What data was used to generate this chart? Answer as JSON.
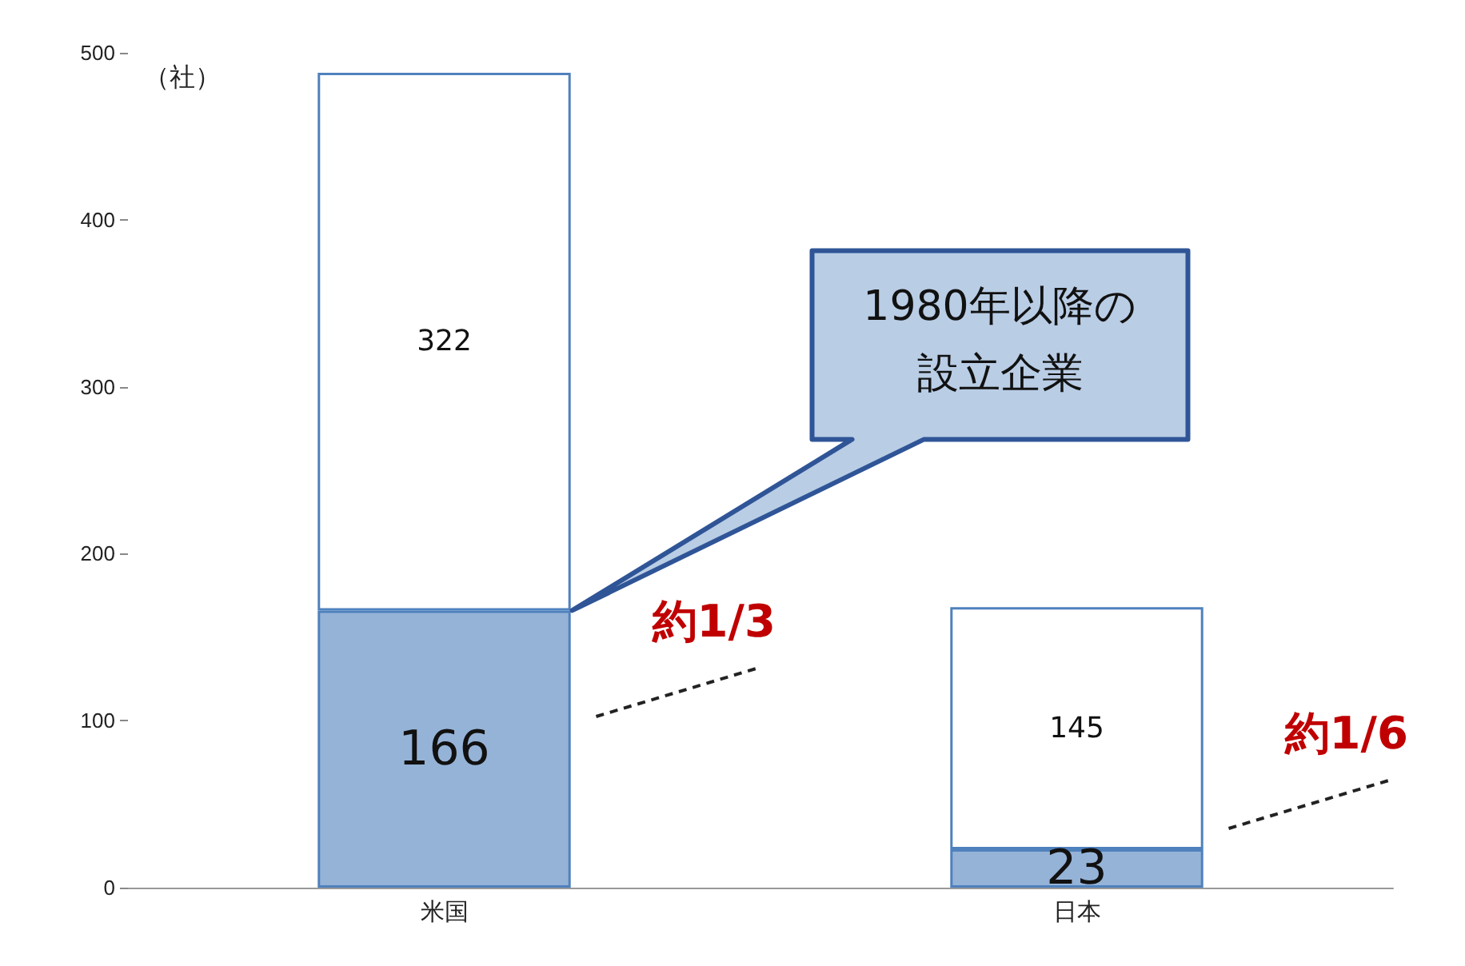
{
  "chart_data": {
    "type": "bar",
    "stacked": true,
    "ylabel": "（社）",
    "categories": [
      "米国",
      "日本"
    ],
    "series": [
      {
        "color": "#95b3d7",
        "values": [
          166,
          23
        ]
      },
      {
        "color": "#ffffff",
        "values": [
          322,
          145
        ]
      }
    ],
    "ylim": [
      0,
      500
    ],
    "yticks": [
      0,
      100,
      200,
      300,
      400,
      500
    ],
    "grid": false,
    "data_labels": true,
    "annotations": [
      "1980年以降の設立企業",
      "約1/3",
      "約1/6"
    ]
  }
}
